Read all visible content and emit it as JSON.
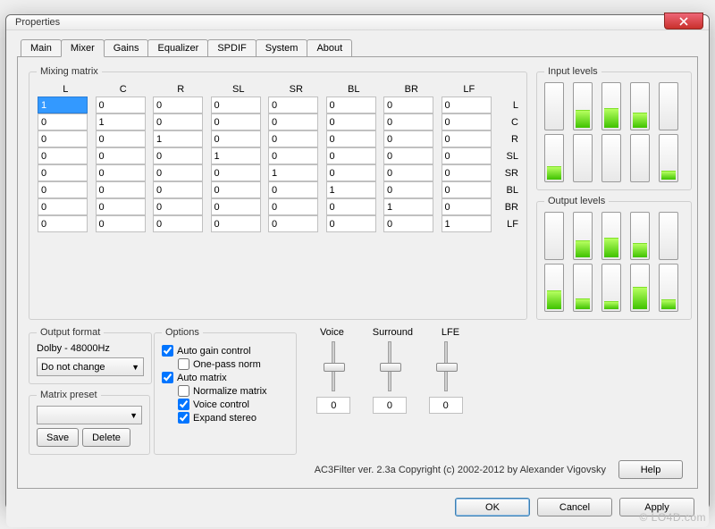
{
  "window": {
    "title": "Properties"
  },
  "tabs": [
    "Main",
    "Mixer",
    "Gains",
    "Equalizer",
    "SPDIF",
    "System",
    "About"
  ],
  "active_tab": 1,
  "matrix": {
    "legend": "Mixing matrix",
    "cols": [
      "L",
      "C",
      "R",
      "SL",
      "SR",
      "BL",
      "BR",
      "LF"
    ],
    "rows": [
      "L",
      "C",
      "R",
      "SL",
      "SR",
      "BL",
      "BR",
      "LF"
    ],
    "cells": [
      [
        "1",
        "0",
        "0",
        "0",
        "0",
        "0",
        "0",
        "0"
      ],
      [
        "0",
        "1",
        "0",
        "0",
        "0",
        "0",
        "0",
        "0"
      ],
      [
        "0",
        "0",
        "1",
        "0",
        "0",
        "0",
        "0",
        "0"
      ],
      [
        "0",
        "0",
        "0",
        "1",
        "0",
        "0",
        "0",
        "0"
      ],
      [
        "0",
        "0",
        "0",
        "0",
        "1",
        "0",
        "0",
        "0"
      ],
      [
        "0",
        "0",
        "0",
        "0",
        "0",
        "1",
        "0",
        "0"
      ],
      [
        "0",
        "0",
        "0",
        "0",
        "0",
        "0",
        "1",
        "0"
      ],
      [
        "0",
        "0",
        "0",
        "0",
        "0",
        "0",
        "0",
        "1"
      ]
    ],
    "selected": [
      0,
      0
    ]
  },
  "output_format": {
    "legend": "Output format",
    "info": "Dolby - 48000Hz",
    "combo": "Do not change"
  },
  "matrix_preset": {
    "legend": "Matrix preset",
    "value": "",
    "save": "Save",
    "delete": "Delete"
  },
  "options": {
    "legend": "Options",
    "auto_gain": {
      "label": "Auto gain control",
      "checked": true
    },
    "one_pass": {
      "label": "One-pass norm",
      "checked": false
    },
    "auto_matrix": {
      "label": "Auto matrix",
      "checked": true
    },
    "normalize": {
      "label": "Normalize matrix",
      "checked": false
    },
    "voice": {
      "label": "Voice control",
      "checked": true
    },
    "expand": {
      "label": "Expand stereo",
      "checked": true
    }
  },
  "sliders": {
    "labels": [
      "Voice",
      "Surround",
      "LFE"
    ],
    "positions": [
      0.5,
      0.5,
      0.5
    ],
    "values": [
      "0",
      "0",
      "0"
    ]
  },
  "input_levels": {
    "legend": "Input levels",
    "fills": [
      0,
      0.4,
      0.45,
      0.34,
      0,
      0.3,
      0,
      0,
      0,
      0.2
    ]
  },
  "output_levels": {
    "legend": "Output levels",
    "fills": [
      0,
      0.38,
      0.44,
      0.33,
      0,
      0.42,
      0.25,
      0.18,
      0.5,
      0.22
    ]
  },
  "copyright": "AC3Filter ver. 2.3a Copyright (c) 2002-2012 by Alexander Vigovsky",
  "buttons": {
    "help": "Help",
    "ok": "OK",
    "cancel": "Cancel",
    "apply": "Apply"
  },
  "watermark": "© LO4D.com",
  "colors": {
    "meter_fill_top": "#b6ff60",
    "meter_fill_bot": "#3fc200",
    "accent": "#3399ff"
  }
}
